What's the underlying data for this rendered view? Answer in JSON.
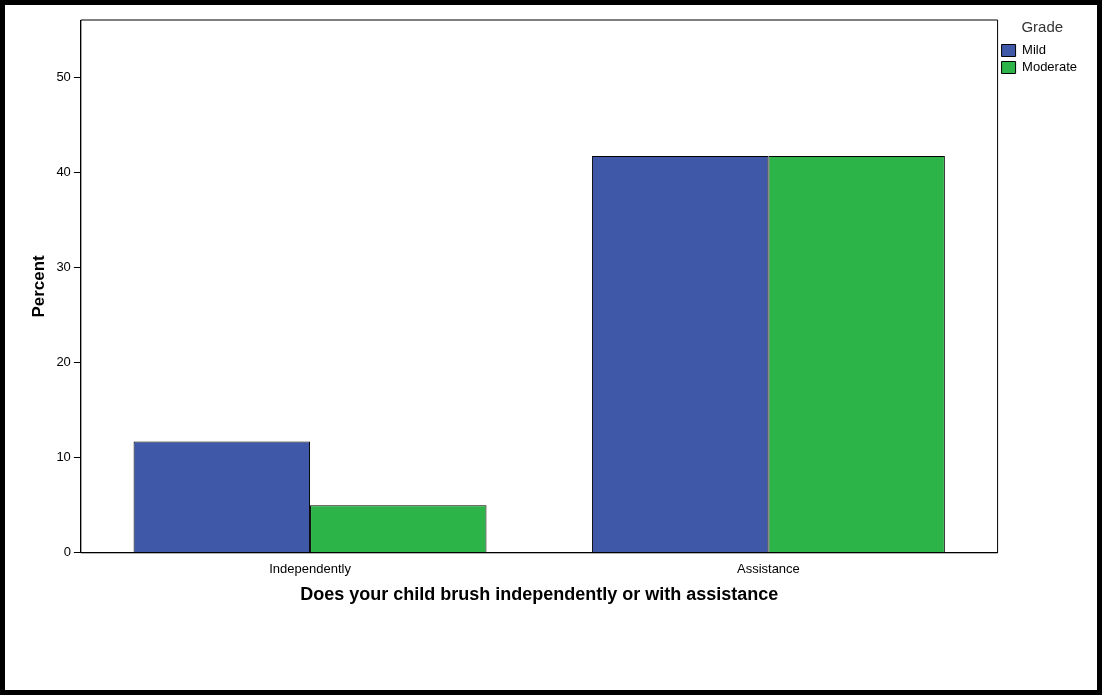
{
  "chart_data": {
    "type": "bar",
    "xlabel": "Does your child brush independently or with assistance",
    "ylabel": "Percent",
    "legend_title": "Grade",
    "legend": "top right",
    "grid": false,
    "categories": [
      "Independently",
      "Assistance"
    ],
    "series": [
      {
        "name": "Mild",
        "color": "#3f58a8",
        "values": [
          11.7,
          41.7
        ]
      },
      {
        "name": "Moderate",
        "color": "#2db448",
        "values": [
          5.0,
          41.7
        ]
      }
    ],
    "ylim": [
      0,
      56
    ],
    "yticks": [
      0,
      10,
      20,
      30,
      40,
      50
    ]
  }
}
